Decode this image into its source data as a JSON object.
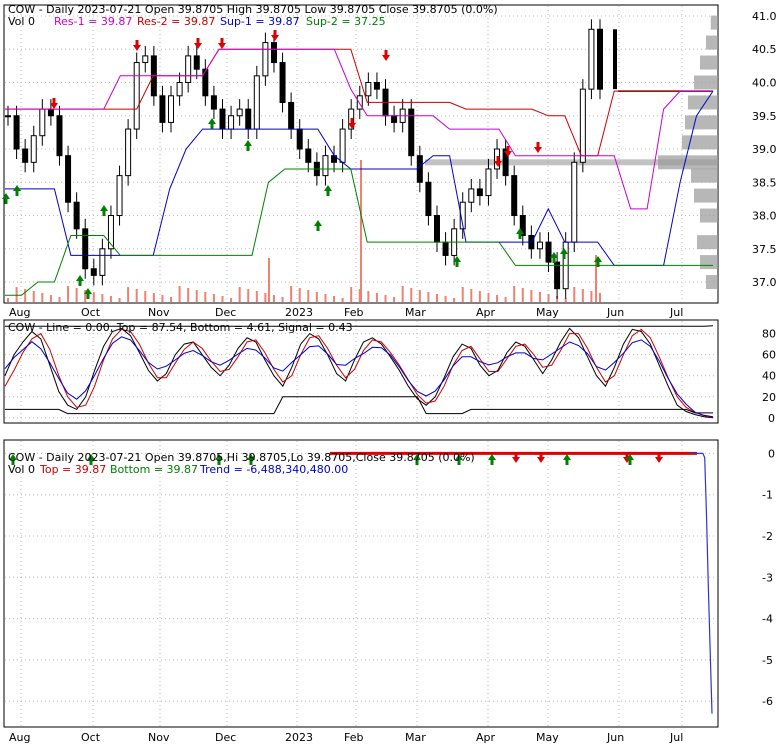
{
  "colors": {
    "res1": "#cc00cc",
    "res2": "#cc0000",
    "sup1": "#0000cc",
    "sup2": "#008000",
    "up_arrow": "#008000",
    "down_arrow": "#dd0000",
    "volume": "#f08070",
    "grid": "#bbbbbb",
    "line": "#000000",
    "signal": "#cc0000",
    "stoch": "#0000cc",
    "trend": "#3333cc"
  },
  "chart_data": [
    {
      "type": "candlestick",
      "title": "COW - Daily 2023-07-21 Open 39.8705  High 39.8705  Low 39.8705  Close 39.8705 (0.0%)",
      "header_title": "COW - Daily 2023-07-21 Open 39.8705  High 39.8705  Low 39.8705  Close 39.8705 (0.0%)",
      "legend": {
        "vol": "Vol 0",
        "res1": "Res-1 = 39.87",
        "res2": "Res-2 = 39.87",
        "sup1": "Sup-1 = 39.87",
        "sup2": "Sup-2 = 37.25"
      },
      "x_labels": [
        "Aug",
        "Oct",
        "Nov",
        "Dec",
        "2023",
        "Feb",
        "Mar",
        "Apr",
        "May",
        "Jun",
        "Jul"
      ],
      "y_ticks": [
        37.0,
        37.5,
        38.0,
        38.5,
        39.0,
        39.5,
        40.0,
        40.5,
        41.0
      ],
      "ylim": [
        36.7,
        41.15
      ],
      "close_approx": [
        39.5,
        39.0,
        38.8,
        39.2,
        39.6,
        39.5,
        38.9,
        38.2,
        37.8,
        37.2,
        37.1,
        37.5,
        38.0,
        38.6,
        39.3,
        40.3,
        40.4,
        39.8,
        39.4,
        39.8,
        40.0,
        40.4,
        40.2,
        39.8,
        39.6,
        39.3,
        39.5,
        39.6,
        39.3,
        40.1,
        40.6,
        40.3,
        39.7,
        39.3,
        39.0,
        38.8,
        38.6,
        38.9,
        38.8,
        39.3,
        39.6,
        39.8,
        40.0,
        39.9,
        39.5,
        39.4,
        39.6,
        38.9,
        38.5,
        38.0,
        37.6,
        37.4,
        37.8,
        38.2,
        38.4,
        38.3,
        38.7,
        39.0,
        38.6,
        38.0,
        37.7,
        37.5,
        37.6,
        37.3,
        36.9,
        37.6,
        38.8,
        39.9,
        40.8,
        39.9,
        39.87,
        39.87,
        39.87
      ],
      "res1_approx": [
        39.6,
        39.6,
        39.6,
        39.6,
        39.6,
        39.6,
        39.6,
        40.1,
        40.1,
        40.1,
        40.1,
        40.1,
        40.1,
        40.5,
        40.5,
        40.5,
        40.5,
        40.5,
        40.5,
        40.5,
        40.5,
        39.9,
        39.5,
        39.5,
        39.5,
        39.5,
        39.5,
        39.3,
        39.3,
        39.3,
        39.3,
        38.9,
        38.9,
        38.9,
        38.9,
        38.9,
        38.9,
        38.9,
        38.1,
        38.1,
        39.6,
        39.87,
        39.87,
        39.87
      ],
      "res2_approx": [
        39.6,
        39.6,
        39.6,
        39.6,
        39.6,
        39.6,
        39.6,
        39.6,
        39.6,
        40.1,
        40.1,
        40.1,
        40.1,
        40.5,
        40.5,
        40.5,
        40.5,
        40.5,
        40.5,
        40.5,
        40.5,
        40.5,
        39.7,
        39.7,
        39.7,
        39.7,
        39.7,
        39.7,
        39.6,
        39.6,
        39.6,
        39.6,
        39.6,
        39.5,
        39.5,
        38.9,
        38.9,
        39.87,
        39.87,
        39.87,
        39.87,
        39.87,
        39.87,
        39.87
      ],
      "sup1_approx": [
        38.4,
        38.4,
        38.4,
        38.4,
        37.4,
        37.4,
        37.4,
        37.4,
        37.4,
        37.4,
        38.4,
        39.0,
        39.3,
        39.3,
        39.3,
        39.3,
        39.3,
        39.3,
        39.3,
        39.3,
        38.9,
        38.7,
        38.7,
        38.7,
        38.7,
        38.7,
        38.9,
        38.9,
        37.6,
        37.6,
        37.6,
        37.6,
        37.6,
        38.1,
        37.6,
        37.6,
        37.6,
        37.25,
        37.25,
        37.25,
        37.25,
        38.5,
        39.5,
        39.87
      ],
      "sup2_approx": [
        36.8,
        36.8,
        37.0,
        37.0,
        37.7,
        37.7,
        37.7,
        37.4,
        37.4,
        37.4,
        37.4,
        37.4,
        37.4,
        37.4,
        37.4,
        37.4,
        38.5,
        38.7,
        38.7,
        38.7,
        38.7,
        38.7,
        37.6,
        37.6,
        37.6,
        37.6,
        37.6,
        37.6,
        37.6,
        37.6,
        37.6,
        37.25,
        37.25,
        37.25,
        37.25,
        37.25,
        37.25,
        37.25,
        37.25,
        37.25,
        37.25,
        37.25,
        37.25,
        37.25
      ]
    },
    {
      "type": "line",
      "title": "COW - Line = 0.00, Top = 87.54, Bottom = 4.61, Signal = 0.43",
      "legend": {
        "line": "Line = 0.00",
        "top": "Top = 87.54",
        "bottom": "Bottom = 4.61",
        "signal": "Signal = 0.43"
      },
      "y_ticks": [
        0,
        20,
        40,
        60,
        80
      ],
      "ylim": [
        -4,
        92
      ],
      "x_labels": [
        "Aug",
        "Oct",
        "Nov",
        "Dec",
        "2023",
        "Feb",
        "Mar",
        "Apr",
        "May",
        "Jun",
        "Jul"
      ],
      "series": [
        {
          "name": "Line",
          "values": [
            40,
            60,
            72,
            82,
            75,
            50,
            25,
            12,
            8,
            20,
            45,
            68,
            82,
            85,
            78,
            62,
            45,
            35,
            42,
            60,
            70,
            72,
            60,
            48,
            40,
            50,
            66,
            76,
            72,
            55,
            40,
            30,
            48,
            70,
            80,
            75,
            60,
            42,
            35,
            55,
            72,
            76,
            70,
            58,
            45,
            30,
            18,
            12,
            20,
            38,
            58,
            70,
            66,
            50,
            40,
            45,
            62,
            72,
            68,
            55,
            42,
            55,
            72,
            85,
            76,
            58,
            40,
            30,
            48,
            70,
            84,
            82,
            70,
            50,
            30,
            12,
            6,
            3,
            1,
            0
          ]
        },
        {
          "name": "Signal",
          "values": [
            30,
            45,
            62,
            75,
            80,
            65,
            40,
            20,
            10,
            12,
            30,
            55,
            75,
            84,
            82,
            70,
            52,
            38,
            38,
            52,
            65,
            72,
            66,
            54,
            44,
            46,
            58,
            72,
            74,
            62,
            46,
            34,
            40,
            60,
            76,
            78,
            66,
            50,
            38,
            46,
            64,
            74,
            72,
            62,
            50,
            36,
            22,
            14,
            16,
            30,
            50,
            64,
            68,
            56,
            44,
            44,
            56,
            68,
            70,
            60,
            48,
            50,
            64,
            80,
            80,
            66,
            48,
            34,
            40,
            60,
            78,
            84,
            76,
            58,
            38,
            20,
            10,
            5,
            2,
            0.43
          ]
        },
        {
          "name": "Top",
          "values": [
            87,
            87,
            87,
            87,
            87,
            87,
            87,
            87,
            87,
            87,
            87,
            87,
            87,
            87,
            87,
            87,
            87,
            87,
            87,
            87,
            87,
            87,
            87,
            87,
            87,
            87,
            87,
            87,
            87,
            87,
            87,
            87,
            87,
            87,
            87,
            87,
            87,
            87,
            87,
            87,
            87,
            87,
            87,
            87,
            87,
            87,
            87,
            87,
            87,
            87,
            87,
            87,
            87,
            87,
            87,
            87,
            87,
            87,
            87,
            87,
            87,
            87,
            87,
            87,
            87,
            87,
            87,
            87,
            87,
            87,
            87,
            87,
            87,
            87,
            87,
            87,
            87,
            87,
            87,
            87.54
          ]
        },
        {
          "name": "Bottom",
          "values": [
            8,
            8,
            8,
            8,
            8,
            8,
            8,
            4,
            4,
            4,
            4,
            4,
            4,
            4,
            4,
            4,
            4,
            4,
            4,
            4,
            4,
            4,
            4,
            4,
            4,
            4,
            4,
            4,
            4,
            4,
            4,
            20,
            20,
            20,
            20,
            20,
            20,
            20,
            20,
            20,
            20,
            20,
            20,
            20,
            20,
            20,
            20,
            4,
            4,
            4,
            4,
            4,
            8,
            8,
            8,
            8,
            8,
            8,
            8,
            8,
            8,
            8,
            8,
            8,
            8,
            8,
            8,
            8,
            8,
            8,
            8,
            8,
            8,
            8,
            8,
            8,
            8,
            4.61,
            4.61,
            4.61
          ]
        }
      ]
    },
    {
      "type": "line",
      "title": "COW - Daily 2023-07-21 Open 39.8705,Hi 39.8705,Lo 39.8705,Close 39.8705 (0.0%)",
      "legend": {
        "vol": "Vol 0",
        "top": "Top = 39.87",
        "bottom": "Bottom = 39.87",
        "trend": "Trend = -6,488,340,480.00"
      },
      "y_ticks": [
        0,
        -1,
        -2,
        -3,
        -4,
        -5,
        -6
      ],
      "ylim": [
        -6.6,
        0.3
      ],
      "x_labels": [
        "Aug",
        "Oct",
        "Nov",
        "Dec",
        "2023",
        "Feb",
        "Mar",
        "Apr",
        "May",
        "Jun",
        "Jul"
      ],
      "series": [
        {
          "name": "Trend",
          "values": [
            0,
            0,
            0,
            0,
            0,
            0,
            0,
            0,
            -0.1,
            -1.5,
            -3.2,
            -4.8,
            -6.3
          ]
        }
      ]
    }
  ]
}
